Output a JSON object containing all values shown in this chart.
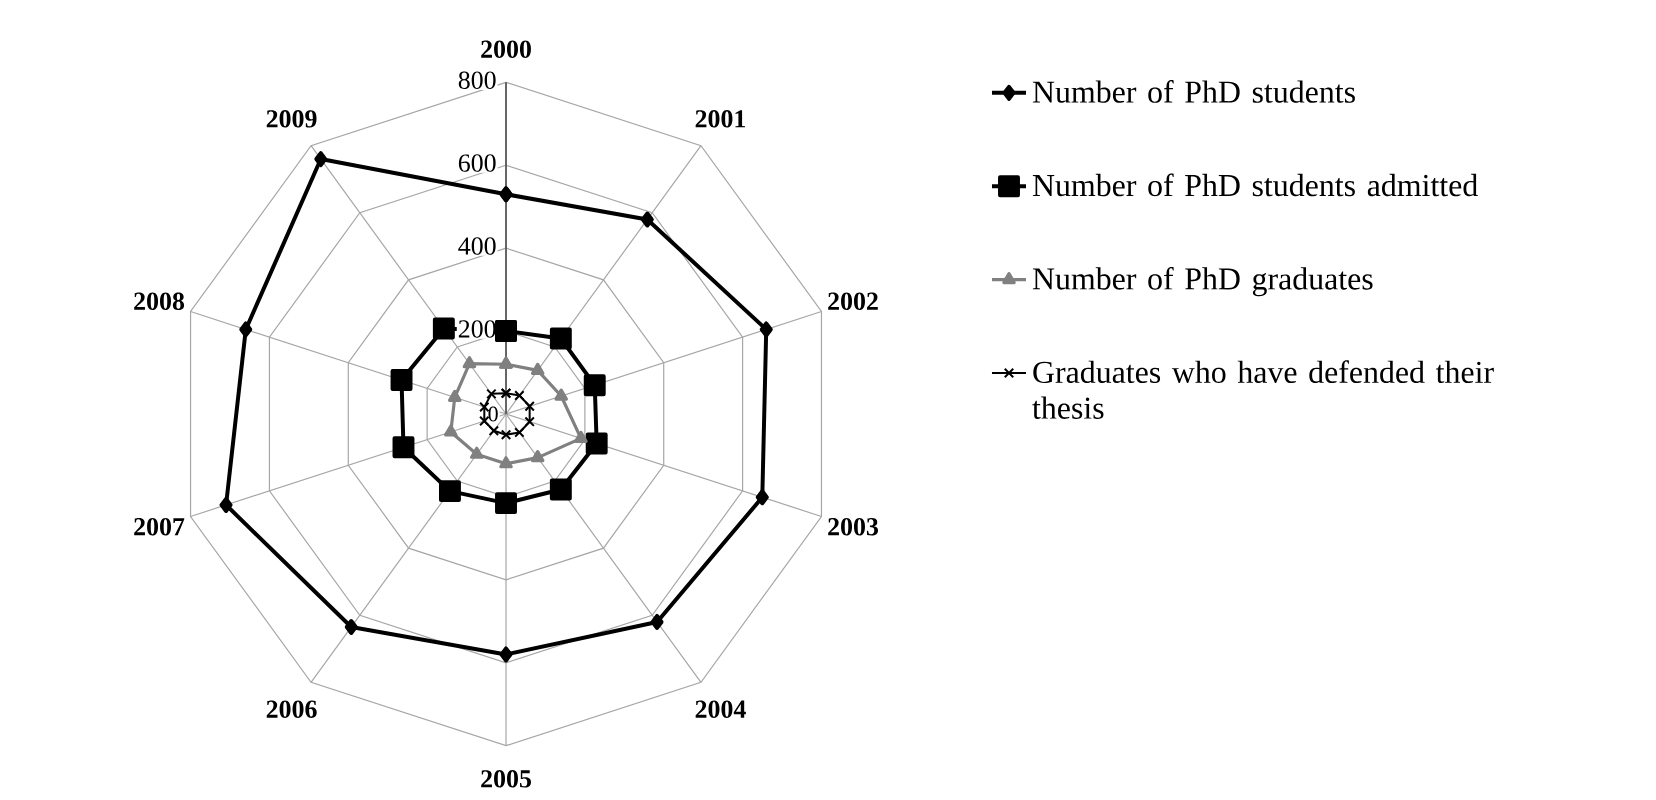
{
  "chart_data": {
    "type": "radar",
    "categories": [
      "2000",
      "2001",
      "2002",
      "2003",
      "2004",
      "2005",
      "2006",
      "2007",
      "2008",
      "2009"
    ],
    "ylim": [
      0,
      800
    ],
    "yticks": [
      0,
      200,
      400,
      600,
      800
    ],
    "grid": true,
    "legend": "right",
    "series": [
      {
        "name": "Number of PhD students",
        "color": "#000000",
        "marker": "diamond",
        "values": [
          530,
          580,
          660,
          650,
          620,
          580,
          635,
          710,
          660,
          760
        ]
      },
      {
        "name": "Number of PhD students admitted",
        "color": "#000000",
        "marker": "square",
        "values": [
          200,
          225,
          225,
          230,
          225,
          215,
          230,
          260,
          265,
          255
        ]
      },
      {
        "name": "Number of PhD graduates",
        "color": "#808080",
        "marker": "triangle",
        "values": [
          120,
          130,
          140,
          190,
          130,
          120,
          120,
          140,
          130,
          150
        ]
      },
      {
        "name": "Graduates who have defended their thesis",
        "color": "#000000",
        "marker": "cross",
        "values": [
          50,
          55,
          60,
          60,
          55,
          50,
          50,
          55,
          55,
          60
        ]
      }
    ]
  }
}
